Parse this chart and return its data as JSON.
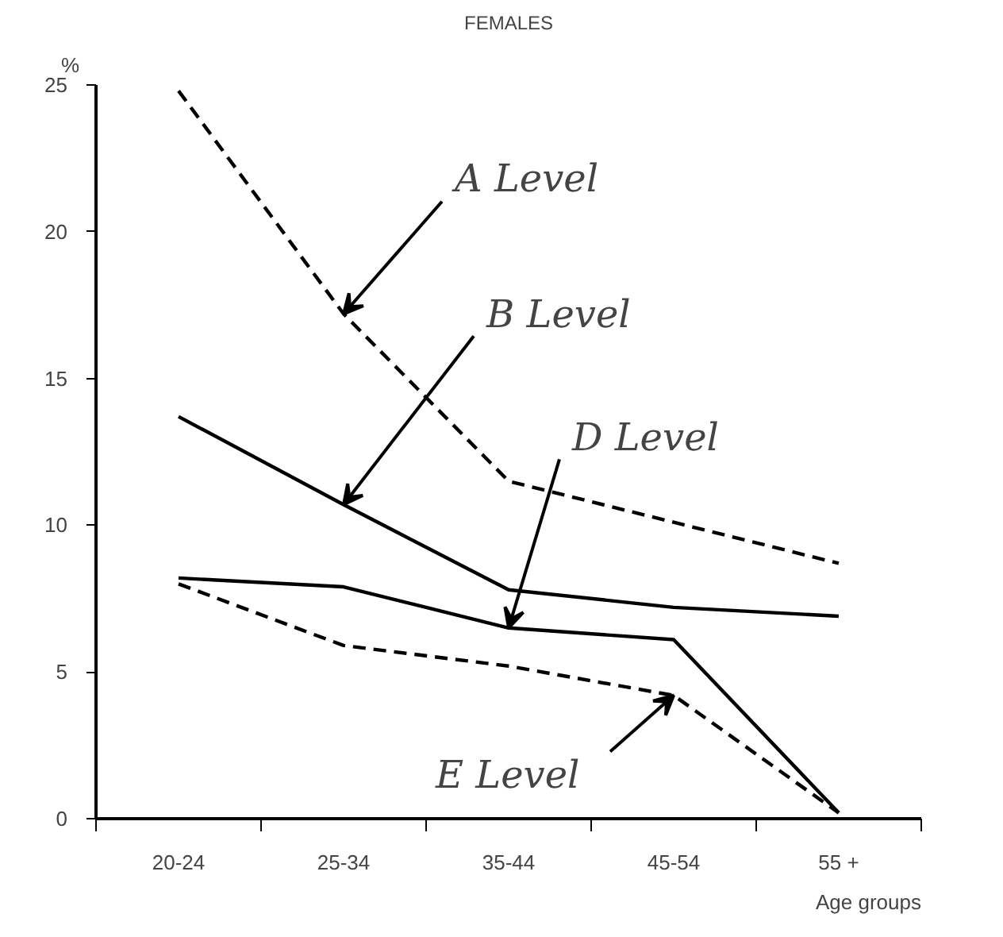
{
  "chart_data": {
    "type": "line",
    "title": "FEMALES",
    "xlabel": "Age groups",
    "ylabel": "%",
    "categories": [
      "20-24",
      "25-34",
      "35-44",
      "45-54",
      "55 +"
    ],
    "ylim": [
      0,
      25
    ],
    "yticks": [
      0,
      5,
      10,
      15,
      20,
      25
    ],
    "grid": false,
    "marker": "none",
    "series": [
      {
        "color": "#000000",
        "line_style": "dashed",
        "values": [
          24.8,
          17.2,
          11.5,
          10.1,
          8.7
        ]
      },
      {
        "color": "#000000",
        "line_style": "solid",
        "values": [
          13.7,
          10.7,
          7.8,
          7.2,
          6.9
        ]
      },
      {
        "color": "#000000",
        "line_style": "solid",
        "values": [
          8.2,
          7.9,
          6.5,
          6.1,
          0.2
        ]
      },
      {
        "color": "#000000",
        "line_style": "dashed",
        "values": [
          8.0,
          5.9,
          5.2,
          4.2,
          0.2
        ]
      }
    ],
    "annotations": [
      {
        "text": "A Level",
        "x": "25-34",
        "y": 17.2
      },
      {
        "text": "B Level",
        "x": "25-34",
        "y": 10.7
      },
      {
        "text": "D Level",
        "x": "35-44",
        "y": 6.5
      },
      {
        "text": "E Level",
        "x": "45-54",
        "y": 4.2
      }
    ]
  }
}
